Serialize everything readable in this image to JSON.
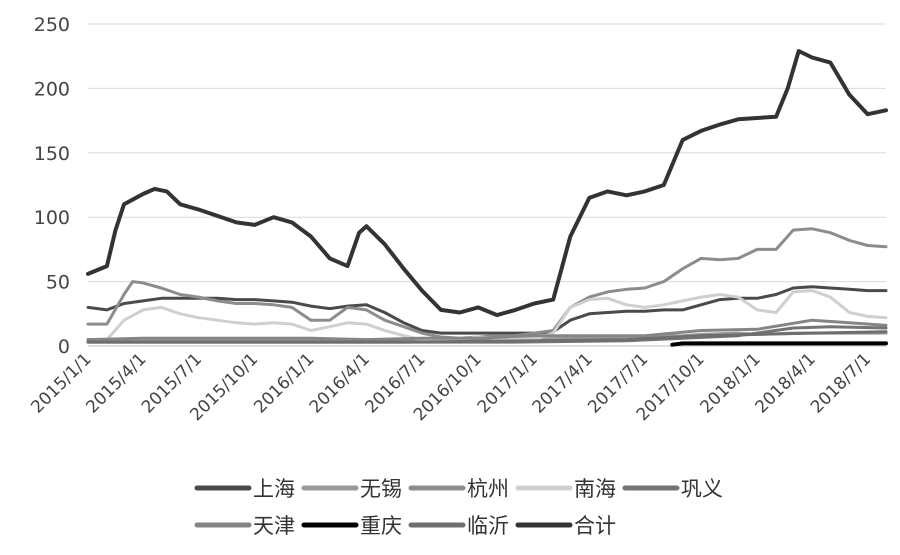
{
  "chart_data": {
    "type": "line",
    "ylim": [
      0,
      250
    ],
    "yticks": [
      0,
      50,
      100,
      150,
      200,
      250
    ],
    "xlim": [
      "2015/1/1",
      "2018/7/31"
    ],
    "xticks": [
      "2015/1/1",
      "2015/4/1",
      "2015/7/1",
      "2015/10/1",
      "2016/1/1",
      "2016/4/1",
      "2016/7/1",
      "2016/10/1",
      "2017/1/1",
      "2017/4/1",
      "2017/7/1",
      "2017/10/1",
      "2018/1/1",
      "2018/4/1",
      "2018/7/1"
    ],
    "grid": "horizontal",
    "legend_position": "bottom",
    "series": [
      {
        "name": "上海",
        "color": "#4a4a4a",
        "width": 3,
        "points": [
          [
            "2015/1/1",
            30
          ],
          [
            "2015/2/1",
            28
          ],
          [
            "2015/3/1",
            33
          ],
          [
            "2015/4/1",
            35
          ],
          [
            "2015/5/1",
            37
          ],
          [
            "2015/6/1",
            37
          ],
          [
            "2015/7/1",
            37
          ],
          [
            "2015/8/1",
            37
          ],
          [
            "2015/9/1",
            36
          ],
          [
            "2015/10/1",
            36
          ],
          [
            "2015/11/1",
            35
          ],
          [
            "2015/12/1",
            34
          ],
          [
            "2016/1/1",
            31
          ],
          [
            "2016/2/1",
            29
          ],
          [
            "2016/3/1",
            31
          ],
          [
            "2016/4/1",
            32
          ],
          [
            "2016/5/1",
            26
          ],
          [
            "2016/6/1",
            18
          ],
          [
            "2016/7/1",
            12
          ],
          [
            "2016/8/1",
            10
          ],
          [
            "2016/9/1",
            10
          ],
          [
            "2016/10/1",
            10
          ],
          [
            "2016/11/1",
            10
          ],
          [
            "2016/12/1",
            10
          ],
          [
            "2017/1/1",
            10
          ],
          [
            "2017/2/1",
            11
          ],
          [
            "2017/3/1",
            20
          ],
          [
            "2017/4/1",
            25
          ],
          [
            "2017/5/1",
            26
          ],
          [
            "2017/6/1",
            27
          ],
          [
            "2017/7/1",
            27
          ],
          [
            "2017/8/1",
            28
          ],
          [
            "2017/9/1",
            28
          ],
          [
            "2017/10/1",
            32
          ],
          [
            "2017/11/1",
            36
          ],
          [
            "2017/12/1",
            37
          ],
          [
            "2018/1/1",
            37
          ],
          [
            "2018/2/1",
            40
          ],
          [
            "2018/3/1",
            45
          ],
          [
            "2018/4/1",
            46
          ],
          [
            "2018/5/1",
            45
          ],
          [
            "2018/6/1",
            44
          ],
          [
            "2018/7/1",
            43
          ],
          [
            "2018/7/31",
            43
          ]
        ]
      },
      {
        "name": "无锡",
        "color": "#9a9a9a",
        "width": 3,
        "points": [
          [
            "2015/1/1",
            5
          ],
          [
            "2015/3/1",
            5
          ],
          [
            "2015/6/1",
            4
          ],
          [
            "2015/9/1",
            4
          ],
          [
            "2015/12/1",
            5
          ],
          [
            "2016/3/1",
            4
          ],
          [
            "2016/6/1",
            4
          ],
          [
            "2016/9/1",
            4
          ],
          [
            "2016/12/1",
            5
          ],
          [
            "2017/3/1",
            6
          ],
          [
            "2017/6/1",
            7
          ],
          [
            "2017/9/1",
            8
          ],
          [
            "2017/10/1",
            9
          ],
          [
            "2017/12/1",
            10
          ],
          [
            "2018/1/1",
            9
          ],
          [
            "2018/3/1",
            10
          ],
          [
            "2018/5/1",
            10
          ],
          [
            "2018/7/31",
            10
          ]
        ]
      },
      {
        "name": "杭州",
        "color": "#8c8c8c",
        "width": 3,
        "points": [
          [
            "2015/1/1",
            17
          ],
          [
            "2015/2/1",
            17
          ],
          [
            "2015/3/1",
            40
          ],
          [
            "2015/3/15",
            50
          ],
          [
            "2015/4/1",
            49
          ],
          [
            "2015/5/1",
            45
          ],
          [
            "2015/6/1",
            40
          ],
          [
            "2015/7/1",
            38
          ],
          [
            "2015/8/1",
            35
          ],
          [
            "2015/9/1",
            33
          ],
          [
            "2015/10/1",
            33
          ],
          [
            "2015/11/1",
            32
          ],
          [
            "2015/12/1",
            30
          ],
          [
            "2016/1/1",
            20
          ],
          [
            "2016/2/1",
            20
          ],
          [
            "2016/3/1",
            30
          ],
          [
            "2016/4/1",
            28
          ],
          [
            "2016/5/1",
            20
          ],
          [
            "2016/6/1",
            15
          ],
          [
            "2016/7/1",
            10
          ],
          [
            "2016/8/1",
            7
          ],
          [
            "2016/9/1",
            6
          ],
          [
            "2016/10/1",
            7
          ],
          [
            "2016/11/1",
            8
          ],
          [
            "2016/12/1",
            8
          ],
          [
            "2017/1/1",
            10
          ],
          [
            "2017/2/1",
            12
          ],
          [
            "2017/3/1",
            30
          ],
          [
            "2017/4/1",
            38
          ],
          [
            "2017/5/1",
            42
          ],
          [
            "2017/6/1",
            44
          ],
          [
            "2017/7/1",
            45
          ],
          [
            "2017/8/1",
            50
          ],
          [
            "2017/9/1",
            60
          ],
          [
            "2017/10/1",
            68
          ],
          [
            "2017/11/1",
            67
          ],
          [
            "2017/12/1",
            68
          ],
          [
            "2018/1/1",
            75
          ],
          [
            "2018/2/1",
            75
          ],
          [
            "2018/3/1",
            90
          ],
          [
            "2018/4/1",
            91
          ],
          [
            "2018/5/1",
            88
          ],
          [
            "2018/6/1",
            82
          ],
          [
            "2018/7/1",
            78
          ],
          [
            "2018/7/31",
            77
          ]
        ]
      },
      {
        "name": "南海",
        "color": "#cfcfcf",
        "width": 3,
        "points": [
          [
            "2015/1/1",
            3
          ],
          [
            "2015/2/1",
            5
          ],
          [
            "2015/3/1",
            20
          ],
          [
            "2015/4/1",
            28
          ],
          [
            "2015/5/1",
            30
          ],
          [
            "2015/6/1",
            25
          ],
          [
            "2015/7/1",
            22
          ],
          [
            "2015/8/1",
            20
          ],
          [
            "2015/9/1",
            18
          ],
          [
            "2015/10/1",
            17
          ],
          [
            "2015/11/1",
            18
          ],
          [
            "2015/12/1",
            17
          ],
          [
            "2016/1/1",
            12
          ],
          [
            "2016/2/1",
            15
          ],
          [
            "2016/3/1",
            18
          ],
          [
            "2016/4/1",
            17
          ],
          [
            "2016/5/1",
            12
          ],
          [
            "2016/6/1",
            8
          ],
          [
            "2016/7/1",
            5
          ],
          [
            "2016/8/1",
            4
          ],
          [
            "2016/9/1",
            5
          ],
          [
            "2016/10/1",
            7
          ],
          [
            "2016/11/1",
            6
          ],
          [
            "2016/12/1",
            5
          ],
          [
            "2017/1/1",
            5
          ],
          [
            "2017/2/1",
            10
          ],
          [
            "2017/3/1",
            30
          ],
          [
            "2017/4/1",
            36
          ],
          [
            "2017/5/1",
            37
          ],
          [
            "2017/6/1",
            32
          ],
          [
            "2017/7/1",
            30
          ],
          [
            "2017/8/1",
            32
          ],
          [
            "2017/9/1",
            35
          ],
          [
            "2017/10/1",
            38
          ],
          [
            "2017/11/1",
            40
          ],
          [
            "2017/12/1",
            38
          ],
          [
            "2018/1/1",
            28
          ],
          [
            "2018/2/1",
            26
          ],
          [
            "2018/3/1",
            42
          ],
          [
            "2018/4/1",
            43
          ],
          [
            "2018/5/1",
            38
          ],
          [
            "2018/6/1",
            26
          ],
          [
            "2018/7/1",
            23
          ],
          [
            "2018/7/31",
            22
          ]
        ]
      },
      {
        "name": "巩义",
        "color": "#737373",
        "width": 3,
        "points": [
          [
            "2015/1/1",
            3
          ],
          [
            "2015/6/1",
            3
          ],
          [
            "2015/12/1",
            3
          ],
          [
            "2016/6/1",
            3
          ],
          [
            "2016/12/1",
            3
          ],
          [
            "2017/6/1",
            4
          ],
          [
            "2017/12/1",
            8
          ],
          [
            "2018/3/1",
            14
          ],
          [
            "2018/5/1",
            15
          ],
          [
            "2018/7/31",
            14
          ]
        ]
      },
      {
        "name": "天津",
        "color": "#858585",
        "width": 3,
        "points": [
          [
            "2015/1/1",
            5
          ],
          [
            "2015/4/1",
            6
          ],
          [
            "2015/7/1",
            6
          ],
          [
            "2015/10/1",
            6
          ],
          [
            "2016/1/1",
            6
          ],
          [
            "2016/4/1",
            5
          ],
          [
            "2016/7/1",
            6
          ],
          [
            "2016/10/1",
            6
          ],
          [
            "2017/1/1",
            8
          ],
          [
            "2017/4/1",
            8
          ],
          [
            "2017/7/1",
            8
          ],
          [
            "2017/10/1",
            12
          ],
          [
            "2018/1/1",
            13
          ],
          [
            "2018/4/1",
            20
          ],
          [
            "2018/6/1",
            18
          ],
          [
            "2018/7/31",
            16
          ]
        ]
      },
      {
        "name": "重庆",
        "color": "#000000",
        "width": 4,
        "points": [
          [
            "2017/8/15",
            1
          ],
          [
            "2017/9/1",
            2
          ],
          [
            "2017/10/1",
            2
          ],
          [
            "2017/11/1",
            2
          ],
          [
            "2017/12/1",
            2
          ],
          [
            "2018/1/1",
            2
          ],
          [
            "2018/3/1",
            2
          ],
          [
            "2018/5/1",
            2
          ],
          [
            "2018/7/31",
            2
          ]
        ]
      },
      {
        "name": "临沂",
        "color": "#6e6e6e",
        "width": 3,
        "points": [
          [
            "2015/1/1",
            3
          ],
          [
            "2015/6/1",
            3
          ],
          [
            "2016/1/1",
            3
          ],
          [
            "2016/6/1",
            3
          ],
          [
            "2017/1/1",
            4
          ],
          [
            "2017/6/1",
            5
          ],
          [
            "2017/10/1",
            8
          ],
          [
            "2018/1/1",
            9
          ],
          [
            "2018/4/1",
            10
          ],
          [
            "2018/7/31",
            11
          ]
        ]
      },
      {
        "name": "合计",
        "color": "#333333",
        "width": 4,
        "points": [
          [
            "2015/1/1",
            56
          ],
          [
            "2015/2/1",
            62
          ],
          [
            "2015/2/15",
            90
          ],
          [
            "2015/3/1",
            110
          ],
          [
            "2015/4/1",
            118
          ],
          [
            "2015/4/20",
            122
          ],
          [
            "2015/5/10",
            120
          ],
          [
            "2015/6/1",
            110
          ],
          [
            "2015/7/1",
            106
          ],
          [
            "2015/8/1",
            101
          ],
          [
            "2015/9/1",
            96
          ],
          [
            "2015/10/1",
            94
          ],
          [
            "2015/11/1",
            100
          ],
          [
            "2015/12/1",
            96
          ],
          [
            "2016/1/1",
            85
          ],
          [
            "2016/2/1",
            68
          ],
          [
            "2016/3/1",
            62
          ],
          [
            "2016/3/20",
            88
          ],
          [
            "2016/4/1",
            93
          ],
          [
            "2016/5/1",
            79
          ],
          [
            "2016/6/1",
            60
          ],
          [
            "2016/7/1",
            43
          ],
          [
            "2016/8/1",
            28
          ],
          [
            "2016/9/1",
            26
          ],
          [
            "2016/10/1",
            30
          ],
          [
            "2016/11/1",
            24
          ],
          [
            "2016/12/1",
            28
          ],
          [
            "2017/1/1",
            33
          ],
          [
            "2017/2/1",
            36
          ],
          [
            "2017/3/1",
            85
          ],
          [
            "2017/4/1",
            115
          ],
          [
            "2017/5/1",
            120
          ],
          [
            "2017/6/1",
            117
          ],
          [
            "2017/7/1",
            120
          ],
          [
            "2017/8/1",
            125
          ],
          [
            "2017/9/1",
            160
          ],
          [
            "2017/10/1",
            167
          ],
          [
            "2017/11/1",
            172
          ],
          [
            "2017/12/1",
            176
          ],
          [
            "2018/1/1",
            177
          ],
          [
            "2018/2/1",
            178
          ],
          [
            "2018/2/20",
            200
          ],
          [
            "2018/3/10",
            229
          ],
          [
            "2018/4/1",
            224
          ],
          [
            "2018/5/1",
            220
          ],
          [
            "2018/6/1",
            195
          ],
          [
            "2018/7/1",
            180
          ],
          [
            "2018/7/31",
            183
          ]
        ]
      }
    ]
  }
}
